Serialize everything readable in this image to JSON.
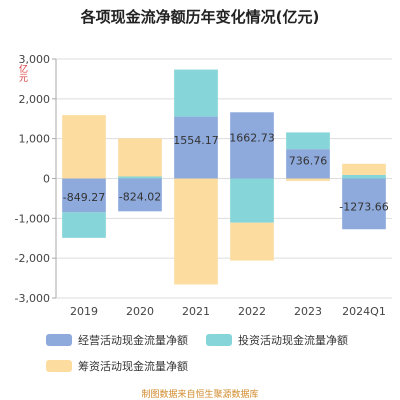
{
  "title": "各项现金流净额历年变化情况(亿元)",
  "y_unit": "亿元",
  "source": "制图数据来自恒生聚源数据库",
  "colors": {
    "operating": "#8eaadc",
    "investing": "#86d5d9",
    "financing": "#fddca0",
    "grid": "#dddddd",
    "axis": "#aaaaaa",
    "text": "#444444"
  },
  "chart_data": {
    "type": "bar",
    "stacked": true,
    "categories": [
      "2019",
      "2020",
      "2021",
      "2022",
      "2023",
      "2024Q1"
    ],
    "series": [
      {
        "name": "经营活动现金流量净额",
        "values": [
          -849.27,
          -824.02,
          1554.17,
          1662.73,
          736.76,
          -1273.66
        ]
      },
      {
        "name": "投资活动现金流量净额",
        "values": [
          -640,
          50,
          1180,
          -1110,
          420,
          90
        ]
      },
      {
        "name": "筹资活动现金流量净额",
        "values": [
          1590,
          960,
          -2660,
          -950,
          -60,
          280
        ]
      }
    ],
    "data_labels": [
      "-849.27",
      "-824.02",
      "1554.17",
      "1662.73",
      "736.76",
      "-1273.66"
    ],
    "y_ticks": [
      3000,
      2000,
      1000,
      0,
      -1000,
      -2000,
      -3000
    ],
    "y_tick_labels": [
      "3,000",
      "2,000",
      "1,000",
      "0",
      "-1,000",
      "-2,000",
      "-3,000"
    ],
    "ylim": [
      -3000,
      3000
    ],
    "grid": true,
    "legend_position": "bottom"
  }
}
